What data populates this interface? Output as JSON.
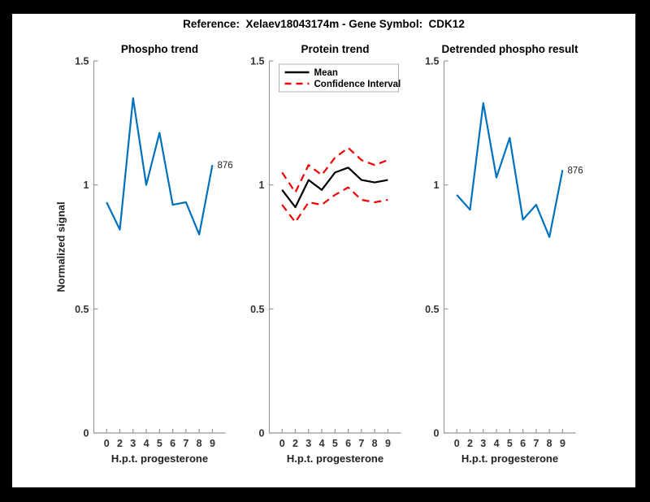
{
  "title": "Reference:  Xelaev18043174m - Gene Symbol:  CDK12",
  "colors": {
    "background": "#000000",
    "figure": "#ffffff",
    "axis_line": "#999999",
    "tick_label": "#333333",
    "phospho_blue": "#0072BD",
    "mean_black": "#000000",
    "ci_red": "#EE0000"
  },
  "chart_data": [
    {
      "type": "line",
      "title": "Phospho trend",
      "xlabel": "H.p.t. progesterone",
      "ylabel": "Normalized signal",
      "categories": [
        "0",
        "2",
        "3",
        "4",
        "5",
        "6",
        "7",
        "8",
        "9"
      ],
      "ylim": [
        0,
        1.5
      ],
      "yticks": [
        0,
        0.5,
        1,
        1.5
      ],
      "ytick_labels": [
        "0",
        "0.5",
        "1",
        "1.5"
      ],
      "grid": false,
      "series": [
        {
          "name": "phospho-signal",
          "color": "#0072BD",
          "style": "solid",
          "values": [
            0.93,
            0.82,
            1.35,
            1.0,
            1.21,
            0.92,
            0.93,
            0.8,
            1.08
          ]
        }
      ],
      "end_label": "876"
    },
    {
      "type": "line",
      "title": "Protein trend",
      "xlabel": "H.p.t. progesterone",
      "ylabel": "",
      "categories": [
        "0",
        "2",
        "3",
        "4",
        "5",
        "6",
        "7",
        "8",
        "9"
      ],
      "ylim": [
        0,
        1.5
      ],
      "yticks": [
        0,
        0.5,
        1,
        1.5
      ],
      "ytick_labels": [
        "0",
        "0.5",
        "1",
        "1.5"
      ],
      "grid": false,
      "legend": {
        "position": "top-left",
        "items": [
          {
            "label": "Mean",
            "color": "#000000",
            "style": "solid"
          },
          {
            "label": "Confidence Interval",
            "color": "#EE0000",
            "style": "dashed"
          }
        ]
      },
      "series": [
        {
          "name": "mean",
          "color": "#000000",
          "style": "solid",
          "values": [
            0.98,
            0.91,
            1.02,
            0.98,
            1.05,
            1.07,
            1.02,
            1.01,
            1.02
          ]
        },
        {
          "name": "ci-upper",
          "color": "#EE0000",
          "style": "dashed",
          "values": [
            1.05,
            0.97,
            1.08,
            1.04,
            1.11,
            1.15,
            1.1,
            1.08,
            1.1
          ]
        },
        {
          "name": "ci-lower",
          "color": "#EE0000",
          "style": "dashed",
          "values": [
            0.92,
            0.85,
            0.93,
            0.92,
            0.96,
            0.99,
            0.94,
            0.93,
            0.94
          ]
        }
      ]
    },
    {
      "type": "line",
      "title": "Detrended phospho result",
      "xlabel": "H.p.t. progesterone",
      "ylabel": "",
      "categories": [
        "0",
        "2",
        "3",
        "4",
        "5",
        "6",
        "7",
        "8",
        "9"
      ],
      "ylim": [
        0,
        1.5
      ],
      "yticks": [
        0,
        0.5,
        1,
        1.5
      ],
      "ytick_labels": [
        "0",
        "0.5",
        "1",
        "1.5"
      ],
      "grid": false,
      "series": [
        {
          "name": "detrended-phospho",
          "color": "#0072BD",
          "style": "solid",
          "values": [
            0.96,
            0.9,
            1.33,
            1.03,
            1.19,
            0.86,
            0.92,
            0.79,
            1.06
          ]
        }
      ],
      "end_label": "876"
    }
  ]
}
